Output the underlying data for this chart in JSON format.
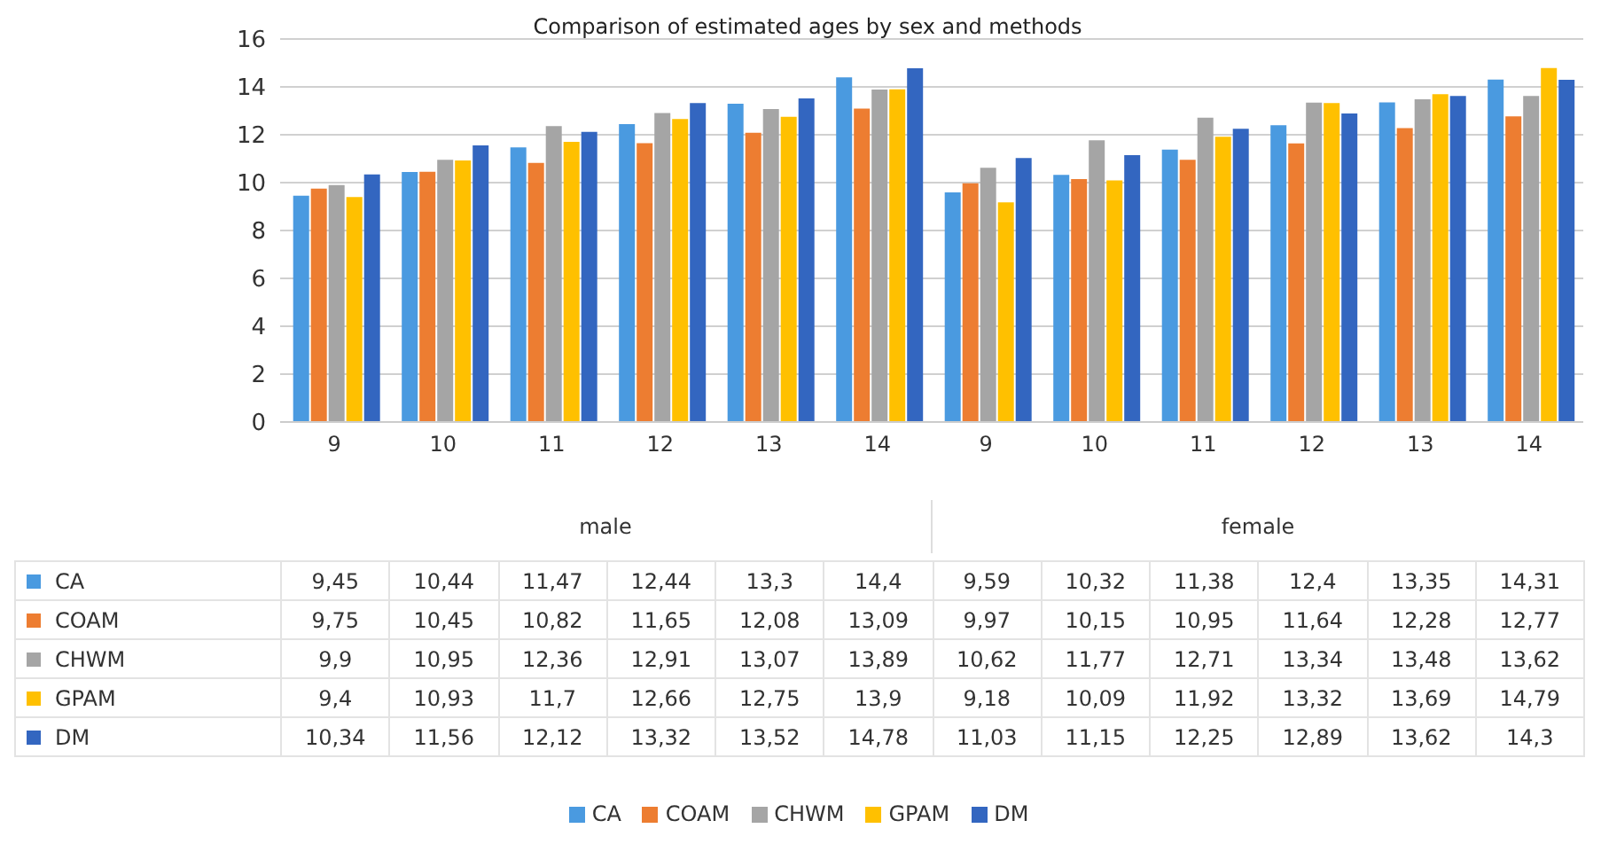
{
  "chart_data": {
    "type": "bar",
    "title": "Comparison of estimated ages by sex and methods",
    "categories": [
      "9",
      "10",
      "11",
      "12",
      "13",
      "14",
      "9",
      "10",
      "11",
      "12",
      "13",
      "14"
    ],
    "annotations": [
      "male",
      "female"
    ],
    "ylim": [
      0,
      16
    ],
    "yticks": [
      0,
      2,
      4,
      6,
      8,
      10,
      12,
      14,
      16
    ],
    "grid": "y",
    "legend": "bottom",
    "series": [
      {
        "name": "CA",
        "color": "#4a9ae0",
        "values": [
          9.45,
          10.44,
          11.47,
          12.44,
          13.3,
          14.4,
          9.59,
          10.32,
          11.38,
          12.4,
          13.35,
          14.31
        ],
        "value_labels": [
          "9,45",
          "10,44",
          "11,47",
          "12,44",
          "13,3",
          "14,4",
          "9,59",
          "10,32",
          "11,38",
          "12,4",
          "13,35",
          "14,31"
        ]
      },
      {
        "name": "COAM",
        "color": "#ed7d31",
        "values": [
          9.75,
          10.45,
          10.82,
          11.65,
          12.08,
          13.09,
          9.97,
          10.15,
          10.95,
          11.64,
          12.28,
          12.77
        ],
        "value_labels": [
          "9,75",
          "10,45",
          "10,82",
          "11,65",
          "12,08",
          "13,09",
          "9,97",
          "10,15",
          "10,95",
          "11,64",
          "12,28",
          "12,77"
        ]
      },
      {
        "name": "CHWM",
        "color": "#a5a5a5",
        "values": [
          9.9,
          10.95,
          12.36,
          12.91,
          13.07,
          13.89,
          10.62,
          11.77,
          12.71,
          13.34,
          13.48,
          13.62
        ],
        "value_labels": [
          "9,9",
          "10,95",
          "12,36",
          "12,91",
          "13,07",
          "13,89",
          "10,62",
          "11,77",
          "12,71",
          "13,34",
          "13,48",
          "13,62"
        ]
      },
      {
        "name": "GPAM",
        "color": "#ffc000",
        "values": [
          9.4,
          10.93,
          11.7,
          12.66,
          12.75,
          13.9,
          9.18,
          10.09,
          11.92,
          13.32,
          13.69,
          14.79
        ],
        "value_labels": [
          "9,4",
          "10,93",
          "11,7",
          "12,66",
          "12,75",
          "13,9",
          "9,18",
          "10,09",
          "11,92",
          "13,32",
          "13,69",
          "14,79"
        ]
      },
      {
        "name": "DM",
        "color": "#3366c0",
        "values": [
          10.34,
          11.56,
          12.12,
          13.32,
          13.52,
          14.78,
          11.03,
          11.15,
          12.25,
          12.89,
          13.62,
          14.3
        ],
        "value_labels": [
          "10,34",
          "11,56",
          "12,12",
          "13,32",
          "13,52",
          "14,78",
          "11,03",
          "11,15",
          "12,25",
          "12,89",
          "13,62",
          "14,3"
        ]
      }
    ]
  }
}
